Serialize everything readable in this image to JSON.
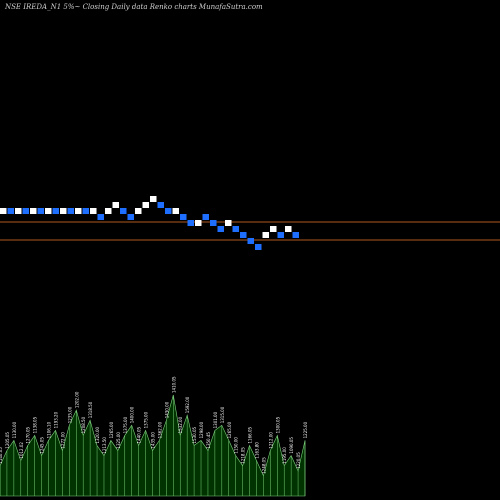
{
  "header": {
    "title": "NSE IREDA_N1 5%~  Closing Daily data  Renko  charts MunafaSutra.com"
  },
  "colors": {
    "background": "#000000",
    "up_brick": "#ffffff",
    "down_brick": "#1e6fff",
    "ref_line": "#b05a1e",
    "volume_fill": "#003300",
    "volume_stroke": "#7cd17c",
    "volume_label": "#ffffff"
  },
  "chart_data": {
    "type": "renko",
    "brick_size_percent": 5,
    "bricks": [
      {
        "dir": "up",
        "level": 0
      },
      {
        "dir": "down",
        "level": 0
      },
      {
        "dir": "up",
        "level": 0
      },
      {
        "dir": "down",
        "level": 0
      },
      {
        "dir": "up",
        "level": 0
      },
      {
        "dir": "down",
        "level": 0
      },
      {
        "dir": "up",
        "level": 0
      },
      {
        "dir": "down",
        "level": 0
      },
      {
        "dir": "up",
        "level": 0
      },
      {
        "dir": "down",
        "level": 0
      },
      {
        "dir": "up",
        "level": 0
      },
      {
        "dir": "down",
        "level": 0
      },
      {
        "dir": "up",
        "level": 0
      },
      {
        "dir": "down",
        "level": -1
      },
      {
        "dir": "up",
        "level": 0
      },
      {
        "dir": "up",
        "level": 1
      },
      {
        "dir": "down",
        "level": 0
      },
      {
        "dir": "down",
        "level": -1
      },
      {
        "dir": "up",
        "level": 0
      },
      {
        "dir": "up",
        "level": 1
      },
      {
        "dir": "up",
        "level": 2
      },
      {
        "dir": "down",
        "level": 1
      },
      {
        "dir": "down",
        "level": 0
      },
      {
        "dir": "up",
        "level": 0
      },
      {
        "dir": "down",
        "level": -1
      },
      {
        "dir": "down",
        "level": -2
      },
      {
        "dir": "up",
        "level": -2
      },
      {
        "dir": "down",
        "level": -1
      },
      {
        "dir": "down",
        "level": -2
      },
      {
        "dir": "down",
        "level": -3
      },
      {
        "dir": "up",
        "level": -2
      },
      {
        "dir": "down",
        "level": -3
      },
      {
        "dir": "down",
        "level": -4
      },
      {
        "dir": "down",
        "level": -5
      },
      {
        "dir": "down",
        "level": -6
      },
      {
        "dir": "up",
        "level": -4
      },
      {
        "dir": "up",
        "level": -3
      },
      {
        "dir": "down",
        "level": -4
      },
      {
        "dir": "up",
        "level": -3
      },
      {
        "dir": "down",
        "level": -4
      }
    ],
    "reference_lines": [
      {
        "level": -1
      },
      {
        "level": -4
      }
    ],
    "volume": {
      "values": [
        30,
        45,
        55,
        35,
        50,
        60,
        40,
        55,
        65,
        45,
        70,
        85,
        60,
        75,
        50,
        40,
        55,
        45,
        60,
        70,
        50,
        65,
        45,
        55,
        75,
        100,
        60,
        80,
        50,
        55,
        45,
        65,
        70,
        55,
        40,
        30,
        50,
        35,
        20,
        45,
        60,
        30,
        40,
        25,
        55
      ],
      "labels": [
        "1140.05",
        "1205.05",
        "1130.00",
        "1012.02",
        "1270.05",
        "1138.05",
        "1245.05",
        "1106.10",
        "1193.20",
        "1272.00",
        "1235.00",
        "1202.00",
        "1208.50",
        "1318.50",
        "1320.00",
        "1213.50",
        "1265.00",
        "1325.00",
        "1375.00",
        "1400.00",
        "1440.05",
        "1375.00",
        "1435.00",
        "1362.00",
        "1430.00",
        "1410.05",
        "1532.00",
        "1592.00",
        "1530.05",
        "1298.00",
        "1350.45",
        "1301.00",
        "1315.00",
        "1265.00",
        "1150.00",
        "1218.05",
        "1166.05",
        "1163.80",
        "1248.05",
        "1212.00",
        "1300.05",
        "1195.00",
        "1090.05",
        "1220.05",
        "1225.00"
      ]
    }
  }
}
